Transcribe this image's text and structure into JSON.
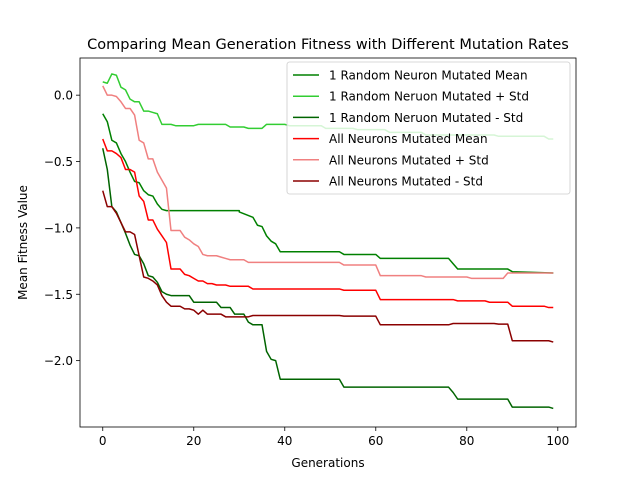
{
  "chart_data": {
    "type": "line",
    "title": "Comparing Mean Generation Fitness with Different Mutation Rates",
    "xlabel": "Generations",
    "ylabel": "Mean Fitness Value",
    "xlim": [
      -5,
      104
    ],
    "ylim": [
      -2.5,
      0.28
    ],
    "xticks": [
      0,
      20,
      40,
      60,
      80,
      100
    ],
    "yticks": [
      0.0,
      -0.5,
      -1.0,
      -1.5,
      -2.0
    ],
    "ytick_labels": [
      "0.0",
      "−0.5",
      "−1.0",
      "−1.5",
      "−2.0"
    ],
    "legend_position": "upper right",
    "grid": false,
    "series": [
      {
        "name": "1 Random Neuron Mutated Mean",
        "color": "#008000",
        "points": [
          [
            0,
            -0.14
          ],
          [
            1,
            -0.2
          ],
          [
            2,
            -0.34
          ],
          [
            3,
            -0.36
          ],
          [
            4,
            -0.44
          ],
          [
            5,
            -0.5
          ],
          [
            6,
            -0.58
          ],
          [
            7,
            -0.65
          ],
          [
            8,
            -0.66
          ],
          [
            9,
            -0.72
          ],
          [
            10,
            -0.75
          ],
          [
            11,
            -0.76
          ],
          [
            12,
            -0.82
          ],
          [
            13,
            -0.86
          ],
          [
            14,
            -0.87
          ],
          [
            30,
            -0.87
          ],
          [
            30,
            -0.88
          ],
          [
            33,
            -0.92
          ],
          [
            34,
            -0.98
          ],
          [
            35,
            -0.99
          ],
          [
            36,
            -1.06
          ],
          [
            37,
            -1.1
          ],
          [
            38,
            -1.12
          ],
          [
            39,
            -1.18
          ],
          [
            52,
            -1.18
          ],
          [
            53,
            -1.2
          ],
          [
            60,
            -1.2
          ],
          [
            61,
            -1.23
          ],
          [
            76,
            -1.23
          ],
          [
            77,
            -1.27
          ],
          [
            78,
            -1.31
          ],
          [
            89,
            -1.31
          ],
          [
            90,
            -1.33
          ],
          [
            99,
            -1.34
          ]
        ]
      },
      {
        "name": "1 Random Neruon Mutated + Std",
        "color": "#32cd32",
        "points": [
          [
            0,
            0.1
          ],
          [
            1,
            0.09
          ],
          [
            2,
            0.16
          ],
          [
            3,
            0.15
          ],
          [
            4,
            0.06
          ],
          [
            5,
            0.04
          ],
          [
            6,
            -0.03
          ],
          [
            7,
            -0.05
          ],
          [
            8,
            -0.05
          ],
          [
            9,
            -0.12
          ],
          [
            10,
            -0.12
          ],
          [
            11,
            -0.13
          ],
          [
            12,
            -0.14
          ],
          [
            13,
            -0.22
          ],
          [
            14,
            -0.22
          ],
          [
            15,
            -0.22
          ],
          [
            16,
            -0.23
          ],
          [
            20,
            -0.23
          ],
          [
            21,
            -0.22
          ],
          [
            27,
            -0.22
          ],
          [
            28,
            -0.24
          ],
          [
            31,
            -0.24
          ],
          [
            32,
            -0.25
          ],
          [
            35,
            -0.25
          ],
          [
            36,
            -0.22
          ],
          [
            40,
            -0.22
          ],
          [
            41,
            -0.23
          ],
          [
            48,
            -0.23
          ],
          [
            49,
            -0.25
          ],
          [
            55,
            -0.25
          ],
          [
            56,
            -0.26
          ],
          [
            62,
            -0.26
          ],
          [
            63,
            -0.28
          ],
          [
            70,
            -0.28
          ],
          [
            71,
            -0.3
          ],
          [
            86,
            -0.3
          ],
          [
            87,
            -0.31
          ],
          [
            97,
            -0.31
          ],
          [
            98,
            -0.33
          ],
          [
            99,
            -0.33
          ]
        ]
      },
      {
        "name": "1 Random Neruon Mutated - Std",
        "color": "#006400",
        "points": [
          [
            0,
            -0.4
          ],
          [
            1,
            -0.56
          ],
          [
            2,
            -0.84
          ],
          [
            3,
            -0.88
          ],
          [
            4,
            -0.96
          ],
          [
            5,
            -1.04
          ],
          [
            6,
            -1.13
          ],
          [
            7,
            -1.2
          ],
          [
            8,
            -1.21
          ],
          [
            9,
            -1.27
          ],
          [
            10,
            -1.36
          ],
          [
            11,
            -1.37
          ],
          [
            12,
            -1.41
          ],
          [
            13,
            -1.48
          ],
          [
            14,
            -1.5
          ],
          [
            15,
            -1.51
          ],
          [
            16,
            -1.51
          ],
          [
            19,
            -1.51
          ],
          [
            20,
            -1.56
          ],
          [
            25,
            -1.56
          ],
          [
            26,
            -1.6
          ],
          [
            28,
            -1.6
          ],
          [
            29,
            -1.65
          ],
          [
            31,
            -1.65
          ],
          [
            32,
            -1.71
          ],
          [
            33,
            -1.73
          ],
          [
            35,
            -1.73
          ],
          [
            36,
            -1.93
          ],
          [
            37,
            -1.99
          ],
          [
            38,
            -2.0
          ],
          [
            39,
            -2.14
          ],
          [
            52,
            -2.14
          ],
          [
            53,
            -2.2
          ],
          [
            76,
            -2.2
          ],
          [
            77,
            -2.24
          ],
          [
            78,
            -2.29
          ],
          [
            89,
            -2.29
          ],
          [
            90,
            -2.35
          ],
          [
            98,
            -2.35
          ],
          [
            99,
            -2.36
          ]
        ]
      },
      {
        "name": "All Neurons Mutated Mean",
        "color": "#ff0000",
        "points": [
          [
            0,
            -0.33
          ],
          [
            1,
            -0.42
          ],
          [
            2,
            -0.42
          ],
          [
            3,
            -0.44
          ],
          [
            4,
            -0.47
          ],
          [
            5,
            -0.56
          ],
          [
            6,
            -0.56
          ],
          [
            7,
            -0.58
          ],
          [
            8,
            -0.76
          ],
          [
            9,
            -0.8
          ],
          [
            10,
            -0.94
          ],
          [
            11,
            -0.94
          ],
          [
            12,
            -1.01
          ],
          [
            13,
            -1.06
          ],
          [
            14,
            -1.11
          ],
          [
            15,
            -1.31
          ],
          [
            16,
            -1.31
          ],
          [
            17,
            -1.31
          ],
          [
            18,
            -1.35
          ],
          [
            19,
            -1.36
          ],
          [
            20,
            -1.38
          ],
          [
            21,
            -1.4
          ],
          [
            22,
            -1.4
          ],
          [
            23,
            -1.42
          ],
          [
            24,
            -1.42
          ],
          [
            25,
            -1.43
          ],
          [
            26,
            -1.43
          ],
          [
            27,
            -1.43
          ],
          [
            28,
            -1.44
          ],
          [
            32,
            -1.44
          ],
          [
            33,
            -1.46
          ],
          [
            52,
            -1.46
          ],
          [
            53,
            -1.47
          ],
          [
            60,
            -1.47
          ],
          [
            61,
            -1.54
          ],
          [
            77,
            -1.54
          ],
          [
            78,
            -1.55
          ],
          [
            84,
            -1.55
          ],
          [
            85,
            -1.56
          ],
          [
            89,
            -1.56
          ],
          [
            90,
            -1.59
          ],
          [
            97,
            -1.59
          ],
          [
            98,
            -1.6
          ],
          [
            99,
            -1.6
          ]
        ]
      },
      {
        "name": "All Neurons Mutated + Std",
        "color": "#f08080",
        "points": [
          [
            0,
            0.07
          ],
          [
            1,
            0.0
          ],
          [
            2,
            0.0
          ],
          [
            3,
            -0.01
          ],
          [
            4,
            -0.05
          ],
          [
            5,
            -0.1
          ],
          [
            6,
            -0.1
          ],
          [
            7,
            -0.15
          ],
          [
            8,
            -0.34
          ],
          [
            9,
            -0.36
          ],
          [
            10,
            -0.48
          ],
          [
            11,
            -0.48
          ],
          [
            12,
            -0.58
          ],
          [
            13,
            -0.64
          ],
          [
            14,
            -0.7
          ],
          [
            15,
            -1.02
          ],
          [
            17,
            -1.02
          ],
          [
            18,
            -1.07
          ],
          [
            19,
            -1.09
          ],
          [
            20,
            -1.12
          ],
          [
            21,
            -1.14
          ],
          [
            22,
            -1.2
          ],
          [
            23,
            -1.21
          ],
          [
            25,
            -1.21
          ],
          [
            26,
            -1.22
          ],
          [
            27,
            -1.23
          ],
          [
            28,
            -1.24
          ],
          [
            31,
            -1.24
          ],
          [
            32,
            -1.26
          ],
          [
            52,
            -1.26
          ],
          [
            53,
            -1.28
          ],
          [
            60,
            -1.28
          ],
          [
            61,
            -1.36
          ],
          [
            70,
            -1.36
          ],
          [
            71,
            -1.37
          ],
          [
            80,
            -1.37
          ],
          [
            81,
            -1.38
          ],
          [
            88,
            -1.38
          ],
          [
            89,
            -1.34
          ],
          [
            99,
            -1.34
          ]
        ]
      },
      {
        "name": "All Neurons Mutated - Std",
        "color": "#8b0000",
        "points": [
          [
            0,
            -0.72
          ],
          [
            1,
            -0.84
          ],
          [
            2,
            -0.84
          ],
          [
            3,
            -0.89
          ],
          [
            4,
            -0.96
          ],
          [
            5,
            -1.03
          ],
          [
            6,
            -1.03
          ],
          [
            7,
            -1.05
          ],
          [
            8,
            -1.21
          ],
          [
            9,
            -1.37
          ],
          [
            10,
            -1.38
          ],
          [
            11,
            -1.4
          ],
          [
            12,
            -1.43
          ],
          [
            13,
            -1.51
          ],
          [
            14,
            -1.56
          ],
          [
            15,
            -1.59
          ],
          [
            17,
            -1.59
          ],
          [
            18,
            -1.61
          ],
          [
            19,
            -1.61
          ],
          [
            20,
            -1.62
          ],
          [
            21,
            -1.65
          ],
          [
            22,
            -1.62
          ],
          [
            23,
            -1.65
          ],
          [
            26,
            -1.65
          ],
          [
            27,
            -1.67
          ],
          [
            32,
            -1.67
          ],
          [
            33,
            -1.66
          ],
          [
            52,
            -1.66
          ],
          [
            53,
            -1.665
          ],
          [
            60,
            -1.665
          ],
          [
            61,
            -1.73
          ],
          [
            76,
            -1.73
          ],
          [
            77,
            -1.72
          ],
          [
            86,
            -1.72
          ],
          [
            87,
            -1.725
          ],
          [
            89,
            -1.725
          ],
          [
            90,
            -1.85
          ],
          [
            98,
            -1.85
          ],
          [
            99,
            -1.86
          ]
        ]
      }
    ]
  }
}
